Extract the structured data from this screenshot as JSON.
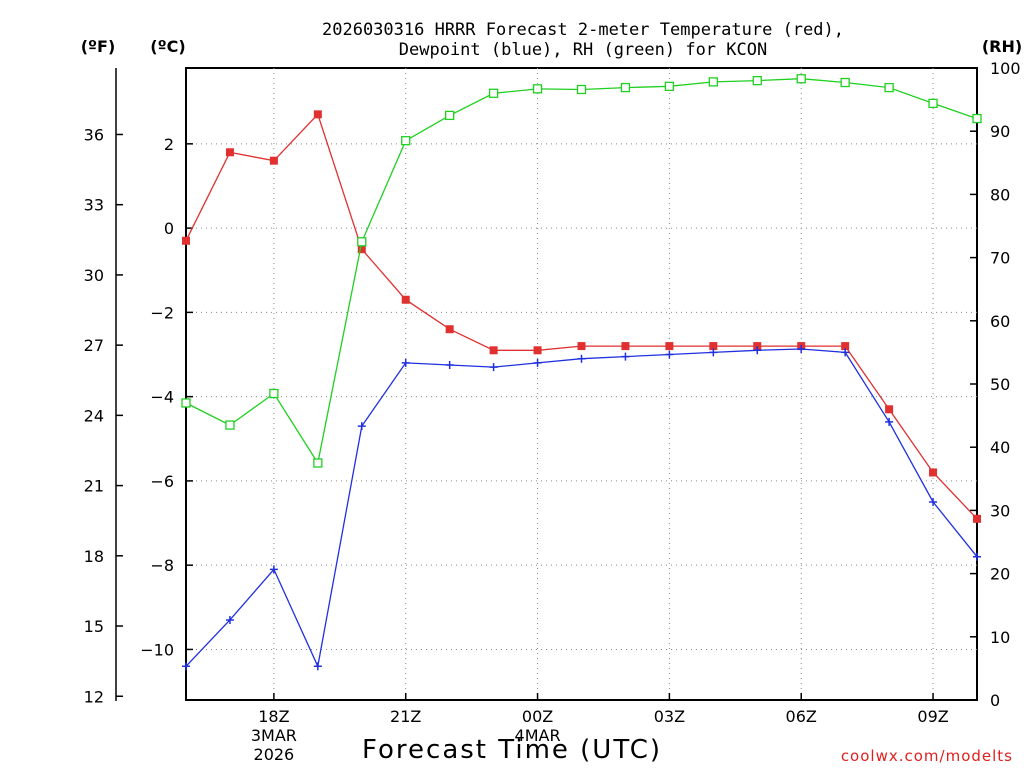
{
  "chart_data": {
    "type": "line",
    "title_line1": "2026030316 HRRR Forecast 2-meter Temperature (red),",
    "title_line2": "Dewpoint (blue), RH (green) for KCON",
    "xlabel": "Forecast Time (UTC)",
    "watermark": "coolwx.com/modelts",
    "axis_labels": {
      "fahrenheit": "(ºF)",
      "celsius": "(ºC)",
      "rh": "(RH)"
    },
    "x_hours_from_start": [
      0,
      1,
      2,
      3,
      4,
      5,
      6,
      7,
      8,
      9,
      10,
      11,
      12,
      13,
      14,
      15,
      16,
      17,
      18
    ],
    "x_ticks": [
      {
        "hour": 2,
        "label": "18Z",
        "sub1": "3MAR",
        "sub2": "2026"
      },
      {
        "hour": 5,
        "label": "21Z"
      },
      {
        "hour": 8,
        "label": "00Z",
        "sub1": "4MAR"
      },
      {
        "hour": 11,
        "label": "03Z"
      },
      {
        "hour": 14,
        "label": "06Z"
      },
      {
        "hour": 17,
        "label": "09Z"
      }
    ],
    "x_range": [
      0,
      18
    ],
    "celsius_range": [
      -11.2,
      3.8
    ],
    "celsius_ticks": [
      2,
      0,
      -2,
      -4,
      -6,
      -8,
      -10
    ],
    "fahrenheit_ticks": [
      36,
      33,
      30,
      27,
      24,
      21,
      18,
      15,
      12
    ],
    "rh_range": [
      0,
      100
    ],
    "rh_ticks": [
      0,
      10,
      20,
      30,
      40,
      50,
      60,
      70,
      80,
      90,
      100
    ],
    "series": [
      {
        "name": "Temperature",
        "color": "#e03030",
        "marker": "filled-square",
        "axis": "celsius",
        "values": [
          -0.3,
          1.8,
          1.6,
          2.7,
          -0.5,
          -1.7,
          -2.4,
          -2.9,
          -2.9,
          -2.8,
          -2.8,
          -2.8,
          -2.8,
          -2.8,
          -2.8,
          -2.8,
          -4.3,
          -5.8,
          -6.9
        ]
      },
      {
        "name": "Dewpoint",
        "color": "#2030e0",
        "marker": "plus",
        "axis": "celsius",
        "values": [
          -10.4,
          -9.3,
          -8.1,
          -10.4,
          -4.7,
          -3.2,
          -3.25,
          -3.3,
          -3.2,
          -3.1,
          -3.05,
          -3.0,
          -2.95,
          -2.9,
          -2.87,
          -2.95,
          -4.6,
          -6.5,
          -7.8
        ]
      },
      {
        "name": "RH",
        "color": "#20d020",
        "marker": "open-square",
        "axis": "rh",
        "values": [
          47,
          43.5,
          48.5,
          37.5,
          72.5,
          88.5,
          92.5,
          96,
          96.7,
          96.6,
          96.9,
          97.1,
          97.8,
          98,
          98.3,
          97.7,
          96.9,
          94.4,
          92
        ]
      }
    ]
  }
}
